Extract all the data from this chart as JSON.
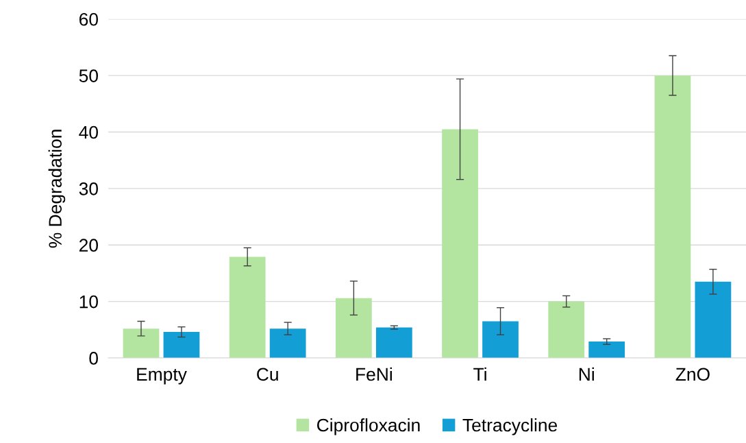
{
  "chart_data": {
    "type": "bar",
    "ylabel": "% Degradation",
    "categories": [
      "Empty",
      "Cu",
      "FeNi",
      "Ti",
      "Ni",
      "ZnO"
    ],
    "series": [
      {
        "name": "Ciprofloxacin",
        "color": "#b3e5a1",
        "values": [
          5.2,
          17.9,
          10.6,
          40.5,
          10.0,
          50.0
        ],
        "errors": [
          1.3,
          1.6,
          3.0,
          8.9,
          1.0,
          3.5
        ]
      },
      {
        "name": "Tetracycline",
        "color": "#139fd6",
        "values": [
          4.6,
          5.2,
          5.4,
          6.5,
          2.9,
          13.5
        ],
        "errors": [
          0.9,
          1.1,
          0.3,
          2.4,
          0.5,
          2.2
        ]
      }
    ],
    "ylim": [
      0,
      60
    ],
    "yticks": [
      0,
      10,
      20,
      30,
      40,
      50,
      60
    ],
    "grid": "y",
    "legend": "bottom"
  }
}
